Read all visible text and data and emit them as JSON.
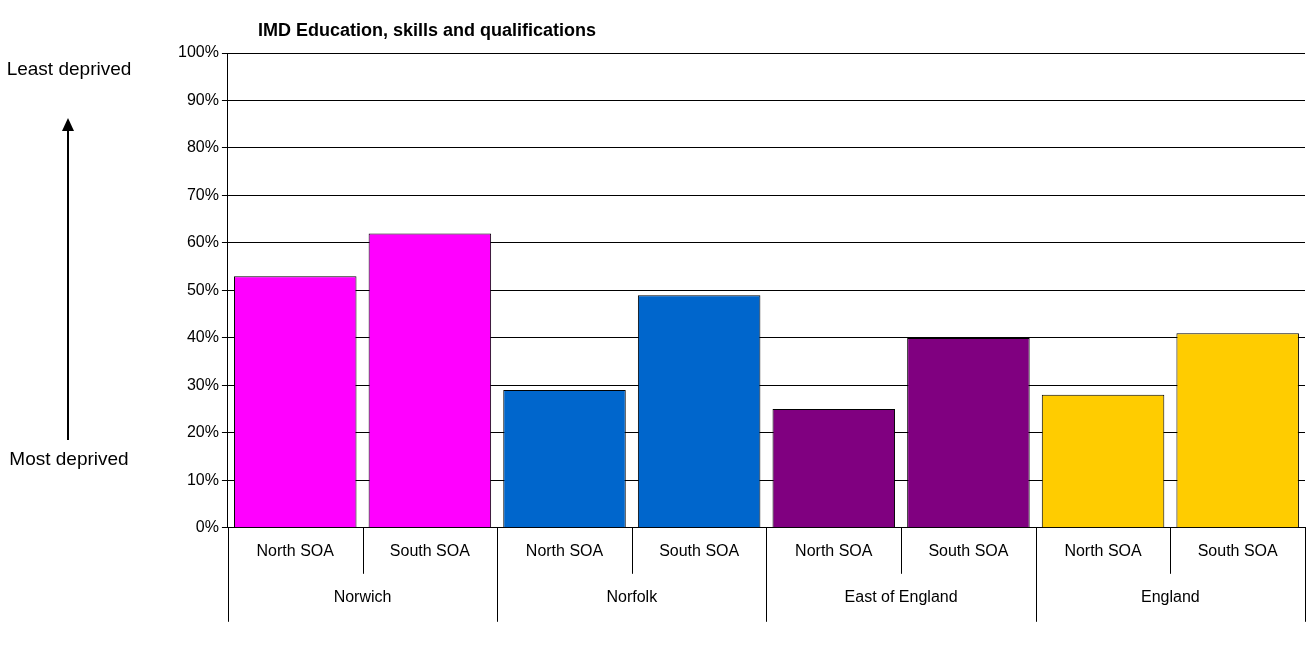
{
  "chart_data": {
    "type": "bar",
    "title": "IMD Education, skills and qualifications",
    "categories": [
      "North SOA",
      "South SOA",
      "North SOA",
      "South SOA",
      "North SOA",
      "South SOA",
      "North SOA",
      "South SOA"
    ],
    "values": [
      53,
      62,
      29,
      49,
      25,
      40,
      28,
      41
    ],
    "colors": [
      "#ff00ff",
      "#ff00ff",
      "#0066cc",
      "#0066cc",
      "#800080",
      "#800080",
      "#ffcc00",
      "#ffcc00"
    ],
    "ylim": [
      0,
      100
    ],
    "yticks": [
      {
        "value": 0,
        "label": "0%"
      },
      {
        "value": 10,
        "label": "10%"
      },
      {
        "value": 20,
        "label": "20%"
      },
      {
        "value": 30,
        "label": "30%"
      },
      {
        "value": 40,
        "label": "40%"
      },
      {
        "value": 50,
        "label": "50%"
      },
      {
        "value": 60,
        "label": "60%"
      },
      {
        "value": 70,
        "label": "70%"
      },
      {
        "value": 80,
        "label": "80%"
      },
      {
        "value": 90,
        "label": "90%"
      },
      {
        "value": 100,
        "label": "100%"
      }
    ],
    "grid": "y",
    "legend": false,
    "annotations": [
      "Least deprived",
      "Most deprived",
      "Norwich",
      "Norfolk",
      "East of England",
      "England"
    ]
  }
}
